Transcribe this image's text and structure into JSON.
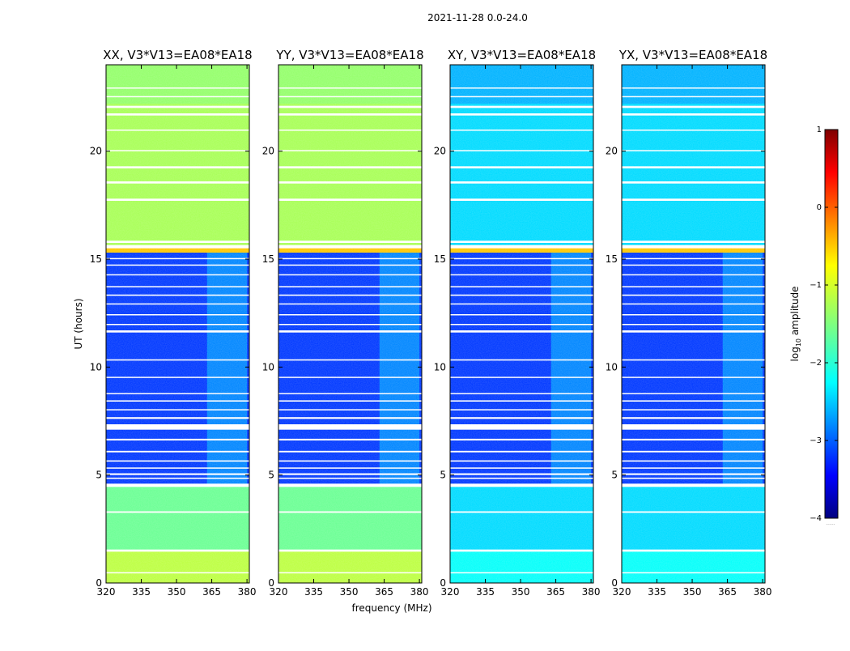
{
  "chart_data": {
    "type": "heatmap",
    "suptitle": "2021-11-28 0.0-24.0",
    "xlabel": "frequency (MHz)",
    "ylabel": "UT (hours)",
    "xlim": [
      320,
      381
    ],
    "ylim": [
      0,
      24
    ],
    "xticks": [
      320,
      335,
      350,
      365,
      380
    ],
    "yticks": [
      0,
      5,
      10,
      15,
      20
    ],
    "colormap": "jet",
    "colorbar": {
      "label": "log10 amplitude",
      "label_base": "log",
      "label_sub": "10",
      "label_rest": " amplitude",
      "range": [
        -4,
        1
      ],
      "ticks": [
        -4,
        -3,
        -2,
        -1,
        0,
        1
      ],
      "tick_labels": [
        "−4",
        "−3",
        "−2",
        "−1",
        "0",
        "1"
      ],
      "bottom_note": "......"
    },
    "flagged_ut_hours": [
      [
        0.45,
        0.5
      ],
      [
        1.45,
        1.55
      ],
      [
        3.25,
        3.32
      ],
      [
        4.45,
        4.6
      ],
      [
        4.82,
        4.88
      ],
      [
        5.0,
        5.08
      ],
      [
        5.3,
        5.35
      ],
      [
        5.62,
        5.68
      ],
      [
        6.05,
        6.12
      ],
      [
        6.6,
        6.68
      ],
      [
        7.1,
        7.35
      ],
      [
        7.6,
        7.68
      ],
      [
        8.0,
        8.05
      ],
      [
        8.4,
        8.46
      ],
      [
        8.75,
        8.8
      ],
      [
        9.5,
        9.55
      ],
      [
        10.3,
        10.36
      ],
      [
        11.6,
        11.7
      ],
      [
        11.95,
        12.0
      ],
      [
        12.4,
        12.45
      ],
      [
        12.9,
        12.95
      ],
      [
        13.3,
        13.36
      ],
      [
        13.7,
        13.75
      ],
      [
        14.25,
        14.3
      ],
      [
        14.7,
        14.75
      ],
      [
        15.0,
        15.05
      ],
      [
        15.5,
        15.65
      ],
      [
        15.75,
        15.85
      ],
      [
        17.7,
        17.8
      ],
      [
        18.5,
        18.6
      ],
      [
        19.2,
        19.3
      ],
      [
        20.0,
        20.05
      ],
      [
        20.95,
        21.0
      ],
      [
        21.65,
        21.75
      ],
      [
        22.0,
        22.1
      ],
      [
        22.5,
        22.55
      ],
      [
        22.9,
        22.95
      ]
    ],
    "rfi_band_mhz": [
      363,
      380
    ],
    "panels": [
      {
        "title": "XX, V3*V13=EA08*EA18",
        "product": "parallel",
        "regions": [
          {
            "ut": [
              0,
              1.5
            ],
            "level": -1.2
          },
          {
            "ut": [
              1.5,
              4.5
            ],
            "level": -1.6
          },
          {
            "ut": [
              4.5,
              15.3
            ],
            "level": -3.1
          },
          {
            "ut": [
              15.3,
              15.6
            ],
            "level": -0.6
          },
          {
            "ut": [
              15.6,
              22.2
            ],
            "level": -1.3
          },
          {
            "ut": [
              22.2,
              24
            ],
            "level": -1.4
          }
        ]
      },
      {
        "title": "YY, V3*V13=EA08*EA18",
        "product": "parallel",
        "regions": [
          {
            "ut": [
              0,
              1.5
            ],
            "level": -1.2
          },
          {
            "ut": [
              1.5,
              4.5
            ],
            "level": -1.6
          },
          {
            "ut": [
              4.5,
              15.3
            ],
            "level": -3.1
          },
          {
            "ut": [
              15.3,
              15.6
            ],
            "level": -0.6
          },
          {
            "ut": [
              15.6,
              22.2
            ],
            "level": -1.3
          },
          {
            "ut": [
              22.2,
              24
            ],
            "level": -1.4
          }
        ]
      },
      {
        "title": "XY, V3*V13=EA08*EA18",
        "product": "cross",
        "regions": [
          {
            "ut": [
              0,
              1.5
            ],
            "level": -2.1
          },
          {
            "ut": [
              1.5,
              4.5
            ],
            "level": -2.3
          },
          {
            "ut": [
              4.5,
              15.3
            ],
            "level": -3.1
          },
          {
            "ut": [
              15.3,
              15.6
            ],
            "level": -0.6
          },
          {
            "ut": [
              15.6,
              22.2
            ],
            "level": -2.3
          },
          {
            "ut": [
              22.2,
              24
            ],
            "level": -2.5
          }
        ]
      },
      {
        "title": "YX, V3*V13=EA08*EA18",
        "product": "cross",
        "regions": [
          {
            "ut": [
              0,
              1.5
            ],
            "level": -2.1
          },
          {
            "ut": [
              1.5,
              4.5
            ],
            "level": -2.3
          },
          {
            "ut": [
              4.5,
              15.3
            ],
            "level": -3.1
          },
          {
            "ut": [
              15.3,
              15.6
            ],
            "level": -0.6
          },
          {
            "ut": [
              15.6,
              22.2
            ],
            "level": -2.3
          },
          {
            "ut": [
              22.2,
              24
            ],
            "level": -2.5
          }
        ]
      }
    ]
  }
}
